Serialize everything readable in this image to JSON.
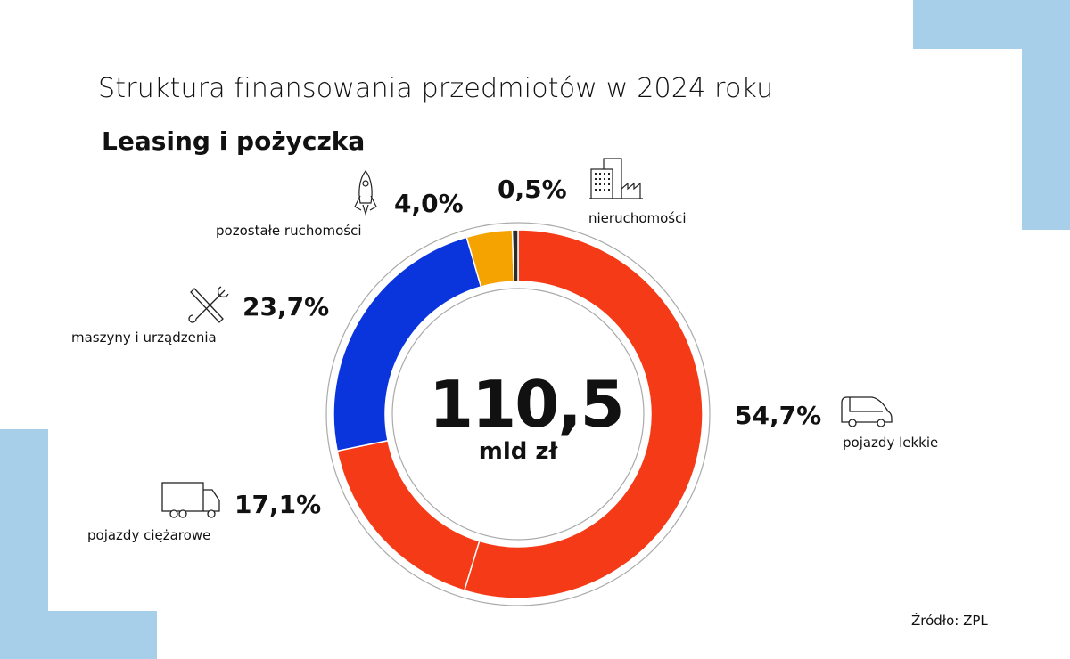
{
  "title": "Struktura finansowania przedmiotów w 2024 roku",
  "subtitle": "Leasing i pożyczka",
  "center": {
    "value": "110,5",
    "unit": "mld zł"
  },
  "source": "Źródło: ZPL",
  "chart_data": {
    "type": "pie",
    "donut": true,
    "title": "Struktura finansowania przedmiotów w 2024 roku",
    "subtitle": "Leasing i pożyczka",
    "slices": [
      {
        "label": "pojazdy lekkie",
        "value": 54.7,
        "text": "54,7%",
        "color": "#f53a17",
        "icon": "van-icon"
      },
      {
        "label": "pojazdy ciężarowe",
        "value": 17.1,
        "text": "17,1%",
        "color": "#f53a17",
        "icon": "truck-icon"
      },
      {
        "label": "maszyny i urządzenia",
        "value": 23.7,
        "text": "23,7%",
        "color": "#0a35dd",
        "icon": "wrench-screwdriver-icon"
      },
      {
        "label": "pozostałe ruchomości",
        "value": 4.0,
        "text": "4,0%",
        "color": "#f5a300",
        "icon": "rocket-icon"
      },
      {
        "label": "nieruchomości",
        "value": 0.5,
        "text": "0,5%",
        "color": "#2b2b2b",
        "icon": "building-factory-icon"
      }
    ]
  }
}
